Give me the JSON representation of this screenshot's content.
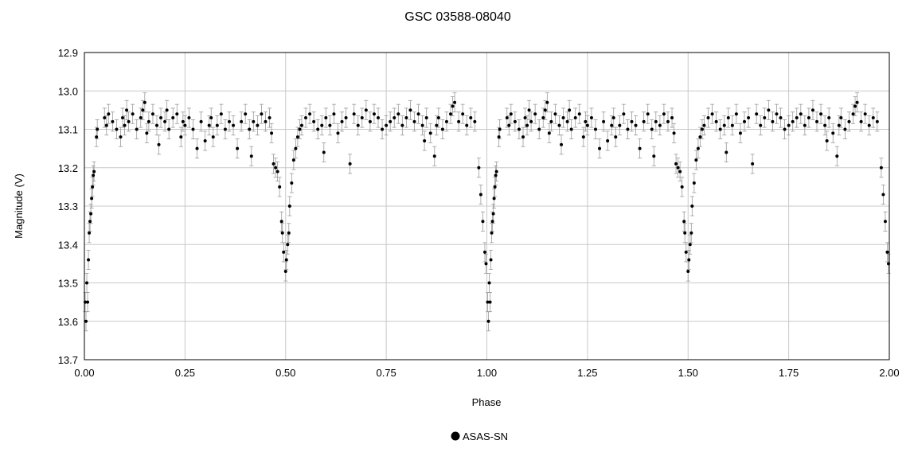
{
  "chart_data": {
    "type": "scatter",
    "title": "GSC 03588-08040",
    "xlabel": "Phase",
    "ylabel": "Magnitude (V)",
    "xlim": [
      0.0,
      2.0
    ],
    "ylim": [
      12.9,
      13.7
    ],
    "y_inverted": true,
    "grid": true,
    "legend_position": "bottom-center",
    "x_ticks": [
      "0.00",
      "0.25",
      "0.50",
      "0.75",
      "1.00",
      "1.25",
      "1.50",
      "1.75",
      "2.00"
    ],
    "y_ticks": [
      "12.9",
      "13.0",
      "13.1",
      "13.2",
      "13.3",
      "13.4",
      "13.5",
      "13.6",
      "13.7"
    ],
    "colors": {
      "points": "#000000",
      "error_bars": "#9a9a9a",
      "grid": "#c8c8c8",
      "axis": "#000000"
    },
    "series": [
      {
        "name": "ASAS-SN",
        "error_typical": 0.025,
        "points": [
          [
            0.002,
            13.55
          ],
          [
            0.004,
            13.6
          ],
          [
            0.006,
            13.5
          ],
          [
            0.008,
            13.55
          ],
          [
            0.01,
            13.44
          ],
          [
            0.012,
            13.37
          ],
          [
            0.014,
            13.34
          ],
          [
            0.016,
            13.32
          ],
          [
            0.018,
            13.28
          ],
          [
            0.02,
            13.25
          ],
          [
            0.022,
            13.22
          ],
          [
            0.024,
            13.21
          ],
          [
            0.03,
            13.12
          ],
          [
            0.032,
            13.1
          ],
          [
            0.05,
            13.07
          ],
          [
            0.055,
            13.09
          ],
          [
            0.06,
            13.06
          ],
          [
            0.07,
            13.08
          ],
          [
            0.08,
            13.1
          ],
          [
            0.09,
            13.12
          ],
          [
            0.095,
            13.07
          ],
          [
            0.1,
            13.09
          ],
          [
            0.105,
            13.05
          ],
          [
            0.11,
            13.08
          ],
          [
            0.12,
            13.06
          ],
          [
            0.13,
            13.1
          ],
          [
            0.14,
            13.07
          ],
          [
            0.145,
            13.05
          ],
          [
            0.15,
            13.03
          ],
          [
            0.155,
            13.11
          ],
          [
            0.16,
            13.08
          ],
          [
            0.17,
            13.06
          ],
          [
            0.18,
            13.09
          ],
          [
            0.185,
            13.14
          ],
          [
            0.19,
            13.07
          ],
          [
            0.2,
            13.08
          ],
          [
            0.205,
            13.05
          ],
          [
            0.21,
            13.1
          ],
          [
            0.22,
            13.07
          ],
          [
            0.23,
            13.06
          ],
          [
            0.24,
            13.12
          ],
          [
            0.245,
            13.08
          ],
          [
            0.25,
            13.09
          ],
          [
            0.26,
            13.07
          ],
          [
            0.27,
            13.1
          ],
          [
            0.28,
            13.15
          ],
          [
            0.29,
            13.08
          ],
          [
            0.3,
            13.13
          ],
          [
            0.31,
            13.09
          ],
          [
            0.315,
            13.07
          ],
          [
            0.32,
            13.12
          ],
          [
            0.33,
            13.09
          ],
          [
            0.34,
            13.06
          ],
          [
            0.35,
            13.1
          ],
          [
            0.36,
            13.08
          ],
          [
            0.37,
            13.09
          ],
          [
            0.38,
            13.15
          ],
          [
            0.39,
            13.08
          ],
          [
            0.4,
            13.06
          ],
          [
            0.41,
            13.1
          ],
          [
            0.415,
            13.17
          ],
          [
            0.42,
            13.08
          ],
          [
            0.43,
            13.09
          ],
          [
            0.44,
            13.06
          ],
          [
            0.45,
            13.08
          ],
          [
            0.46,
            13.07
          ],
          [
            0.465,
            13.11
          ],
          [
            0.47,
            13.19
          ],
          [
            0.475,
            13.2
          ],
          [
            0.48,
            13.21
          ],
          [
            0.485,
            13.25
          ],
          [
            0.49,
            13.34
          ],
          [
            0.492,
            13.37
          ],
          [
            0.495,
            13.42
          ],
          [
            0.5,
            13.47
          ],
          [
            0.502,
            13.44
          ],
          [
            0.505,
            13.4
          ],
          [
            0.508,
            13.37
          ],
          [
            0.51,
            13.3
          ],
          [
            0.515,
            13.24
          ],
          [
            0.52,
            13.18
          ],
          [
            0.525,
            13.15
          ],
          [
            0.53,
            13.12
          ],
          [
            0.535,
            13.1
          ],
          [
            0.54,
            13.09
          ],
          [
            0.55,
            13.07
          ],
          [
            0.56,
            13.06
          ],
          [
            0.57,
            13.08
          ],
          [
            0.58,
            13.1
          ],
          [
            0.59,
            13.09
          ],
          [
            0.595,
            13.16
          ],
          [
            0.6,
            13.07
          ],
          [
            0.61,
            13.09
          ],
          [
            0.62,
            13.06
          ],
          [
            0.63,
            13.11
          ],
          [
            0.64,
            13.08
          ],
          [
            0.65,
            13.07
          ],
          [
            0.66,
            13.19
          ],
          [
            0.67,
            13.06
          ],
          [
            0.68,
            13.09
          ],
          [
            0.69,
            13.07
          ],
          [
            0.7,
            13.05
          ],
          [
            0.71,
            13.08
          ],
          [
            0.72,
            13.06
          ],
          [
            0.73,
            13.07
          ],
          [
            0.74,
            13.1
          ],
          [
            0.75,
            13.09
          ],
          [
            0.76,
            13.08
          ],
          [
            0.77,
            13.07
          ],
          [
            0.78,
            13.06
          ],
          [
            0.79,
            13.09
          ],
          [
            0.8,
            13.07
          ],
          [
            0.81,
            13.05
          ],
          [
            0.82,
            13.08
          ],
          [
            0.83,
            13.06
          ],
          [
            0.84,
            13.09
          ],
          [
            0.845,
            13.13
          ],
          [
            0.85,
            13.07
          ],
          [
            0.86,
            13.11
          ],
          [
            0.87,
            13.17
          ],
          [
            0.875,
            13.09
          ],
          [
            0.88,
            13.07
          ],
          [
            0.89,
            13.1
          ],
          [
            0.9,
            13.08
          ],
          [
            0.91,
            13.06
          ],
          [
            0.915,
            13.04
          ],
          [
            0.92,
            13.03
          ],
          [
            0.93,
            13.08
          ],
          [
            0.94,
            13.06
          ],
          [
            0.95,
            13.09
          ],
          [
            0.96,
            13.07
          ],
          [
            0.97,
            13.08
          ],
          [
            0.98,
            13.2
          ],
          [
            0.985,
            13.27
          ],
          [
            0.99,
            13.34
          ],
          [
            0.995,
            13.42
          ],
          [
            0.998,
            13.45
          ]
        ]
      }
    ],
    "legend": [
      {
        "label": "ASAS-SN",
        "marker": "circle"
      }
    ]
  }
}
